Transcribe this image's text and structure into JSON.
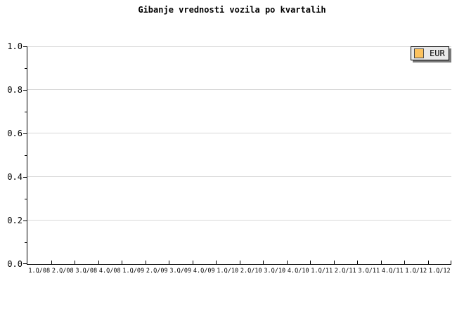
{
  "chart_data": {
    "type": "line",
    "title": "Gibanje vrednosti vozila po kvartalih",
    "categories": [
      "1.Q/08",
      "2.Q/08",
      "3.Q/08",
      "4.Q/08",
      "1.Q/09",
      "2.Q/09",
      "3.Q/09",
      "4.Q/09",
      "1.Q/10",
      "2.Q/10",
      "3.Q/10",
      "4.Q/10",
      "1.Q/11",
      "2.Q/11",
      "3.Q/11",
      "4.Q/11",
      "1.Q/12",
      "1.Q/12"
    ],
    "series": [
      {
        "name": "EUR",
        "color": "#fcc25e",
        "values": []
      }
    ],
    "xlabel": "",
    "ylabel": "",
    "ylim": [
      0.0,
      1.0
    ],
    "y_ticks": [
      "0.0",
      "0.2",
      "0.4",
      "0.6",
      "0.8",
      "1.0"
    ],
    "y_major_step": 0.2,
    "y_minor_step": 0.1,
    "grid": "horizontal-major",
    "legend": {
      "position": "top-right",
      "entries": [
        {
          "label": "EUR",
          "color": "#fcc25e"
        }
      ]
    }
  },
  "colors": {
    "background": "#ffffff",
    "axis": "#000000",
    "gridline": "#d8d8d8",
    "legend_background": "#e9e9e9",
    "legend_border": "#000000",
    "legend_shadow": "#7a7a7a",
    "series_eur": "#fcc25e",
    "text": "#000000"
  }
}
